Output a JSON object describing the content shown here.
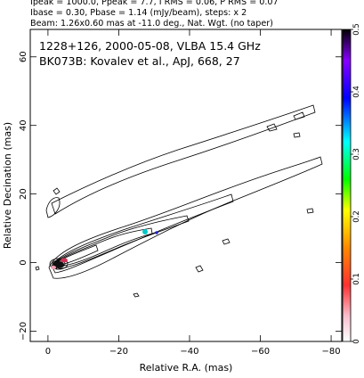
{
  "header": {
    "line1": "Ipeak = 1000.0, Ppeak = 7.7, I RMS = 0.06, P RMS = 0.07",
    "line2": "Ibase = 0.30, Pbase = 1.14 (mJy/beam), steps: x 2",
    "line3": "Beam: 1.26x0.60 mas at -11.0 deg., Nat. Wgt. (no taper)"
  },
  "chart_data": {
    "type": "contour",
    "annotation_line1": "1228+126, 2000-05-08, VLBA 15.4 GHz",
    "annotation_line2": "BK073B: Kovalev et al., ApJ, 668, 27",
    "xlabel": "Relative R.A. (mas)",
    "ylabel": "Relative Decination (mas)",
    "xlim": [
      5,
      -83
    ],
    "ylim": [
      -23,
      68
    ],
    "x_ticks": [
      0,
      -20,
      -40,
      -60,
      -80
    ],
    "x_tick_labels": [
      "0",
      "−20",
      "−40",
      "−60",
      "−80"
    ],
    "y_ticks": [
      -20,
      0,
      20,
      40,
      60
    ],
    "y_tick_labels": [
      "−20",
      "0",
      "20",
      "40",
      "60"
    ],
    "colorbar": {
      "range": [
        0,
        0.5
      ],
      "ticks": [
        0,
        0.1,
        0.2,
        0.3,
        0.4,
        0.5
      ],
      "tick_labels": [
        "0",
        "0.1",
        "0.2",
        "0.3",
        "0.4",
        "0.5"
      ],
      "colors": [
        "#ffffff",
        "#f6a0b4",
        "#ff0000",
        "#ff8800",
        "#ffff00",
        "#00ff00",
        "#00ffff",
        "#0000ff",
        "#8800ff",
        "#000000"
      ]
    }
  }
}
